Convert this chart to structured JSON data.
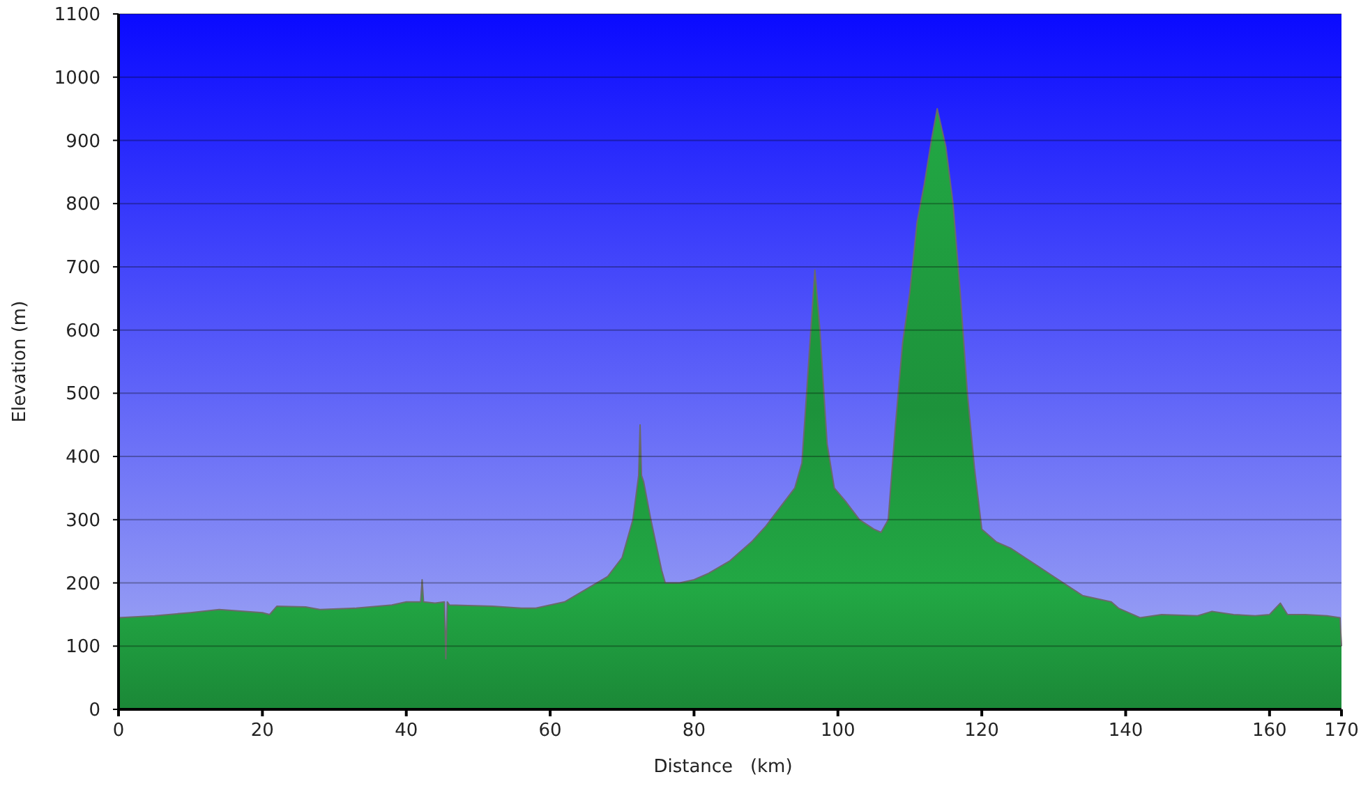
{
  "chart_data": {
    "type": "area",
    "xlabel": "Distance   (km)",
    "ylabel": "Elevation (m)",
    "xlim": [
      0,
      170
    ],
    "ylim": [
      0,
      1100
    ],
    "xticks": [
      0,
      20,
      40,
      60,
      80,
      100,
      120,
      140,
      160,
      170
    ],
    "yticks": [
      0,
      100,
      200,
      300,
      400,
      500,
      600,
      700,
      800,
      900,
      1000,
      1100
    ],
    "grid": "y",
    "series": [
      {
        "color": "#22a844",
        "x": [
          0,
          5,
          10,
          14,
          20,
          21,
          22,
          26,
          28,
          33,
          38,
          40,
          42,
          42.2,
          42.4,
          44,
          45.3,
          45.5,
          45.7,
          46,
          52,
          56,
          58,
          62,
          65,
          68,
          70,
          71.5,
          72.3,
          72.5,
          72.7,
          73,
          74,
          75.5,
          76,
          78,
          80,
          82,
          85,
          88,
          90,
          92,
          94,
          95,
          96,
          96.8,
          97.5,
          98.5,
          99.5,
          101,
          103,
          105,
          106,
          107,
          108,
          109,
          110,
          111,
          112,
          113,
          113.8,
          115,
          116,
          117,
          118,
          119,
          120,
          122,
          124,
          126,
          128,
          130,
          132,
          134,
          136,
          138,
          139,
          141,
          142,
          145,
          150,
          152,
          155,
          158,
          160,
          161.5,
          162.5,
          165,
          168,
          169.8,
          170
        ],
        "values": [
          145,
          148,
          153,
          158,
          153,
          150,
          163,
          162,
          158,
          160,
          165,
          170,
          170,
          205,
          170,
          168,
          170,
          80,
          170,
          165,
          163,
          160,
          160,
          170,
          190,
          210,
          240,
          300,
          370,
          450,
          370,
          360,
          300,
          220,
          200,
          200,
          205,
          215,
          235,
          265,
          290,
          320,
          350,
          390,
          560,
          695,
          600,
          420,
          350,
          330,
          300,
          285,
          280,
          300,
          450,
          580,
          660,
          770,
          830,
          900,
          950,
          890,
          800,
          660,
          500,
          380,
          285,
          265,
          255,
          240,
          225,
          210,
          195,
          180,
          175,
          170,
          160,
          150,
          145,
          150,
          148,
          155,
          150,
          148,
          150,
          168,
          150,
          150,
          148,
          145,
          100
        ]
      }
    ]
  }
}
